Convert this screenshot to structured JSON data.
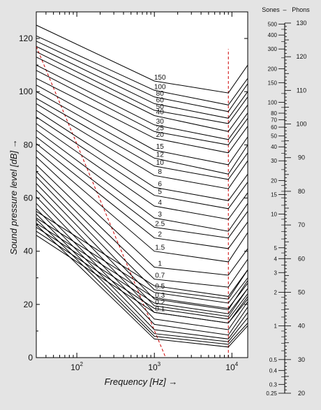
{
  "chart_data": {
    "type": "line",
    "xlabel": "Frequency [Hz] →",
    "ylabel": "Sound pressure level [dB] →",
    "x_scale": "log",
    "xlim": [
      30,
      16000
    ],
    "ylim": [
      0,
      130
    ],
    "x_ticks": [
      {
        "value": 100,
        "base": "10",
        "exp": "2"
      },
      {
        "value": 1000,
        "base": "10",
        "exp": "3"
      },
      {
        "value": 10000,
        "base": "10",
        "exp": "4"
      }
    ],
    "y_ticks": [
      0,
      20,
      40,
      60,
      80,
      100,
      120
    ],
    "x_anchor": [
      30,
      1000,
      9000,
      16000
    ],
    "curves": [
      {
        "label": "150",
        "y": [
          125,
          104,
          99.5,
          110
        ]
      },
      {
        "label": "100",
        "y": [
          121,
          100.5,
          95,
          105
        ]
      },
      {
        "label": "80",
        "y": [
          119,
          98,
          92.5,
          103
        ]
      },
      {
        "label": "60",
        "y": [
          117,
          95.5,
          90,
          100
        ]
      },
      {
        "label": "50",
        "y": [
          115,
          93,
          88,
          98
        ]
      },
      {
        "label": "40",
        "y": [
          113,
          91,
          85,
          95
        ]
      },
      {
        "label": "30",
        "y": [
          110,
          87.5,
          82,
          92
        ]
      },
      {
        "label": "25",
        "y": [
          108,
          85,
          80,
          90
        ]
      },
      {
        "label": "20",
        "y": [
          105,
          82.5,
          77,
          87
        ]
      },
      {
        "label": "15",
        "y": [
          102.5,
          78,
          72.5,
          83
        ]
      },
      {
        "label": "12",
        "y": [
          100,
          75,
          69,
          80
        ]
      },
      {
        "label": "10",
        "y": [
          97.5,
          72,
          67,
          77
        ]
      },
      {
        "label": "8",
        "y": [
          95.5,
          68.5,
          63.5,
          74
        ]
      },
      {
        "label": "6",
        "y": [
          93,
          64,
          59,
          69
        ]
      },
      {
        "label": "5",
        "y": [
          90.5,
          61,
          56,
          66
        ]
      },
      {
        "label": "4",
        "y": [
          88,
          57,
          52,
          62
        ]
      },
      {
        "label": "3",
        "y": [
          85.5,
          52.5,
          47.5,
          58
        ]
      },
      {
        "label": "2.5",
        "y": [
          83,
          49,
          45,
          55
        ]
      },
      {
        "label": "2",
        "y": [
          80.5,
          45,
          41,
          51
        ]
      },
      {
        "label": "1.5",
        "y": [
          78,
          40,
          36,
          47
        ]
      },
      {
        "label": "1",
        "y": [
          75.5,
          34,
          31,
          41
        ]
      },
      {
        "label": "0.7",
        "y": [
          72.5,
          29.5,
          26.5,
          37
        ]
      },
      {
        "label": "0.5",
        "y": [
          70,
          25.5,
          22,
          33
        ]
      },
      {
        "label": "0.3",
        "y": [
          68,
          22,
          18,
          29
        ]
      },
      {
        "label": "0.2",
        "y": [
          65.5,
          19.5,
          15.5,
          26
        ]
      },
      {
        "label": "0.1",
        "y": [
          63,
          17,
          13,
          23
        ]
      },
      {
        "label": "",
        "y": [
          60.5,
          14.5,
          10.5,
          21
        ]
      },
      {
        "label": "",
        "y": [
          58,
          12.5,
          8.5,
          19
        ]
      },
      {
        "label": "",
        "y": [
          56,
          10.5,
          7,
          17
        ]
      },
      {
        "label": "",
        "y": [
          54,
          9,
          6,
          15
        ]
      },
      {
        "label": "",
        "y": [
          52,
          8,
          5,
          13
        ]
      },
      {
        "label": "",
        "y": [
          50,
          7,
          4,
          12
        ]
      }
    ],
    "curves_extra": [
      {
        "y": [
          55,
          27,
          23,
          33
        ]
      },
      {
        "y": [
          52.5,
          24.5,
          20.5,
          30
        ]
      },
      {
        "y": [
          50.5,
          22.5,
          18.5,
          28
        ]
      },
      {
        "y": [
          49,
          20.5,
          16.5,
          26
        ]
      },
      {
        "y": [
          47.5,
          18.5,
          14.5,
          24
        ]
      },
      {
        "y": [
          46,
          17,
          13,
          22
        ]
      }
    ],
    "reference_lines": [
      {
        "type": "diagonal",
        "color": "#cc0000",
        "points": [
          [
            30,
            117
          ],
          [
            1400,
            0
          ]
        ]
      },
      {
        "type": "vertical",
        "color": "#cc0000",
        "x": 9000,
        "y_range": [
          0,
          116
        ]
      }
    ],
    "side_scale": {
      "header_sones": "Sones",
      "header_dash": "–",
      "header_phons": "Phons",
      "phons_range": [
        20,
        130
      ],
      "phons_labels": [
        130,
        120,
        110,
        100,
        90,
        80,
        70,
        60,
        50,
        40,
        30,
        20
      ],
      "sones_labels": [
        {
          "v": 500,
          "t": "500"
        },
        {
          "v": 400,
          "t": "400"
        },
        {
          "v": 300,
          "t": "300"
        },
        {
          "v": 200,
          "t": "200"
        },
        {
          "v": 150,
          "t": "150"
        },
        {
          "v": 100,
          "t": "100"
        },
        {
          "v": 80,
          "t": "80"
        },
        {
          "v": 70,
          "t": "70"
        },
        {
          "v": 60,
          "t": "60"
        },
        {
          "v": 50,
          "t": "50"
        },
        {
          "v": 40,
          "t": "40"
        },
        {
          "v": 30,
          "t": "30"
        },
        {
          "v": 20,
          "t": "20"
        },
        {
          "v": 15,
          "t": "15"
        },
        {
          "v": 10,
          "t": "10"
        },
        {
          "v": 5,
          "t": "5"
        },
        {
          "v": 4,
          "t": "4"
        },
        {
          "v": 3,
          "t": "3"
        },
        {
          "v": 2,
          "t": "2"
        },
        {
          "v": 1,
          "t": "1"
        },
        {
          "v": 0.5,
          "t": "0.5"
        },
        {
          "v": 0.4,
          "t": "0.4"
        },
        {
          "v": 0.3,
          "t": "0.3"
        },
        {
          "v": 0.25,
          "t": "0.25"
        }
      ]
    }
  }
}
